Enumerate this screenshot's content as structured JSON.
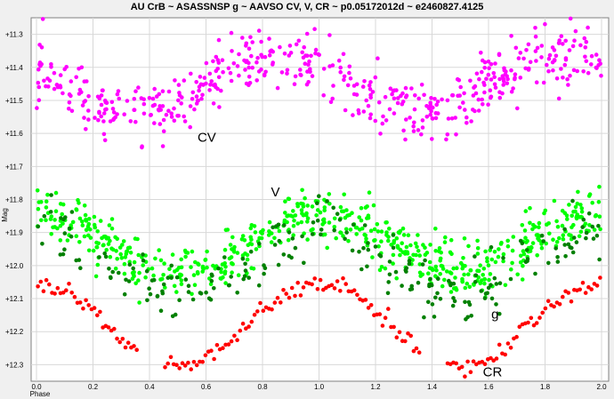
{
  "chart_data": {
    "type": "scatter",
    "title": "AU CrB ~ ASASSNSP g ~ AAVSO CV, V, CR ~ p0.05172012d ~ e2460827.4125",
    "xlabel": "Phase",
    "ylabel": "Mag",
    "xlim": [
      0.0,
      2.0
    ],
    "ylim": [
      12.35,
      11.25
    ],
    "y_inverted": true,
    "x_ticks": [
      "0.0",
      "0.2",
      "0.4",
      "0.6",
      "0.8",
      "1.0",
      "1.2",
      "1.4",
      "1.6",
      "1.8",
      "2.0"
    ],
    "y_ticks": [
      "+11.3",
      "+11.4",
      "+11.5",
      "+11.6",
      "+11.7",
      "+11.8",
      "+11.9",
      "+12.0",
      "+12.1",
      "+12.2",
      "+12.3"
    ],
    "grid": true,
    "background": "#ffffff",
    "series": [
      {
        "label": "CV",
        "color": "#ff00ff",
        "model": {
          "base": 11.45,
          "amplitude": 0.085,
          "peak_phase": 0.85,
          "scatter": 0.045,
          "count": 520,
          "xmin": 0.0,
          "xmax": 2.0
        }
      },
      {
        "label": "V",
        "color": "#00ff00",
        "model": {
          "base": 11.93,
          "amplitude": 0.085,
          "peak_phase": 0.0,
          "scatter": 0.04,
          "count": 620,
          "xmin": 0.0,
          "xmax": 2.0
        }
      },
      {
        "label": "g",
        "color": "#008000",
        "model": {
          "base": 11.985,
          "amplitude": 0.1,
          "peak_phase": 0.0,
          "scatter": 0.045,
          "count": 220,
          "xmin": 0.0,
          "xmax": 2.0
        }
      },
      {
        "label": "CR",
        "color": "#ff0000",
        "segments": [
          {
            "x0": 0.0,
            "x1": 0.36
          },
          {
            "x0": 0.45,
            "x1": 0.92
          },
          {
            "x0": 0.92,
            "x1": 1.36
          },
          {
            "x0": 1.45,
            "x1": 2.0
          }
        ],
        "model": {
          "base": 12.18,
          "amplitude": 0.125,
          "peak_phase": 0.0,
          "scatter": 0.012,
          "count": 180,
          "xmin": 0.0,
          "xmax": 2.0
        }
      }
    ],
    "annotations": [
      {
        "text": "CV",
        "x": 0.57,
        "y": 11.625
      },
      {
        "text": "V",
        "x": 0.83,
        "y": 11.79
      },
      {
        "text": "g",
        "x": 1.61,
        "y": 12.16
      },
      {
        "text": "CR",
        "x": 1.58,
        "y": 12.335
      }
    ]
  }
}
